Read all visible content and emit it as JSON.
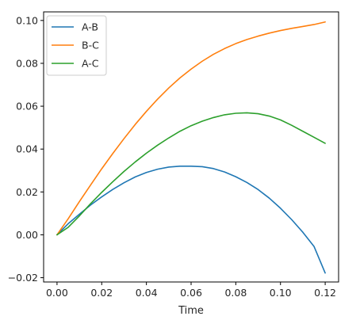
{
  "chart_data": {
    "type": "line",
    "title": "",
    "xlabel": "Time",
    "ylabel": "",
    "xlim": [
      -0.006,
      0.126
    ],
    "ylim": [
      -0.022,
      0.104
    ],
    "xticks": [
      0.0,
      0.02,
      0.04,
      0.06,
      0.08,
      0.1,
      0.12
    ],
    "xtick_labels": [
      "0.00",
      "0.02",
      "0.04",
      "0.06",
      "0.08",
      "0.10",
      "0.12"
    ],
    "yticks": [
      -0.02,
      0.0,
      0.02,
      0.04,
      0.06,
      0.08,
      0.1
    ],
    "ytick_labels": [
      "−0.02",
      "0.00",
      "0.02",
      "0.04",
      "0.06",
      "0.08",
      "0.10"
    ],
    "grid": false,
    "legend_position": "top-left",
    "x": [
      0.0,
      0.005,
      0.01,
      0.015,
      0.02,
      0.025,
      0.03,
      0.035,
      0.04,
      0.045,
      0.05,
      0.055,
      0.06,
      0.065,
      0.07,
      0.075,
      0.08,
      0.085,
      0.09,
      0.095,
      0.1,
      0.105,
      0.11,
      0.115,
      0.12
    ],
    "series": [
      {
        "name": "A-B",
        "color": "#1f77b4",
        "values": [
          0.0,
          0.0052,
          0.0096,
          0.0139,
          0.0177,
          0.0212,
          0.0243,
          0.027,
          0.0291,
          0.0306,
          0.0316,
          0.032,
          0.032,
          0.0318,
          0.0309,
          0.0293,
          0.0271,
          0.0244,
          0.0211,
          0.0171,
          0.0124,
          0.0071,
          0.0012,
          -0.0054,
          -0.0178
        ]
      },
      {
        "name": "B-C",
        "color": "#ff7f0e",
        "values": [
          0.0,
          0.0075,
          0.0155,
          0.0232,
          0.0308,
          0.038,
          0.0449,
          0.0515,
          0.0576,
          0.0633,
          0.0685,
          0.0732,
          0.0773,
          0.081,
          0.0842,
          0.0869,
          0.0892,
          0.0911,
          0.0927,
          0.0941,
          0.0953,
          0.0963,
          0.0972,
          0.0981,
          0.0993
        ]
      },
      {
        "name": "A-C",
        "color": "#2ca02c",
        "values": [
          0.0,
          0.0035,
          0.0088,
          0.0145,
          0.0198,
          0.0248,
          0.0296,
          0.034,
          0.0381,
          0.0418,
          0.0452,
          0.0483,
          0.0509,
          0.053,
          0.0547,
          0.056,
          0.0567,
          0.0569,
          0.0565,
          0.0554,
          0.0536,
          0.0511,
          0.0483,
          0.0455,
          0.0427
        ]
      }
    ]
  }
}
